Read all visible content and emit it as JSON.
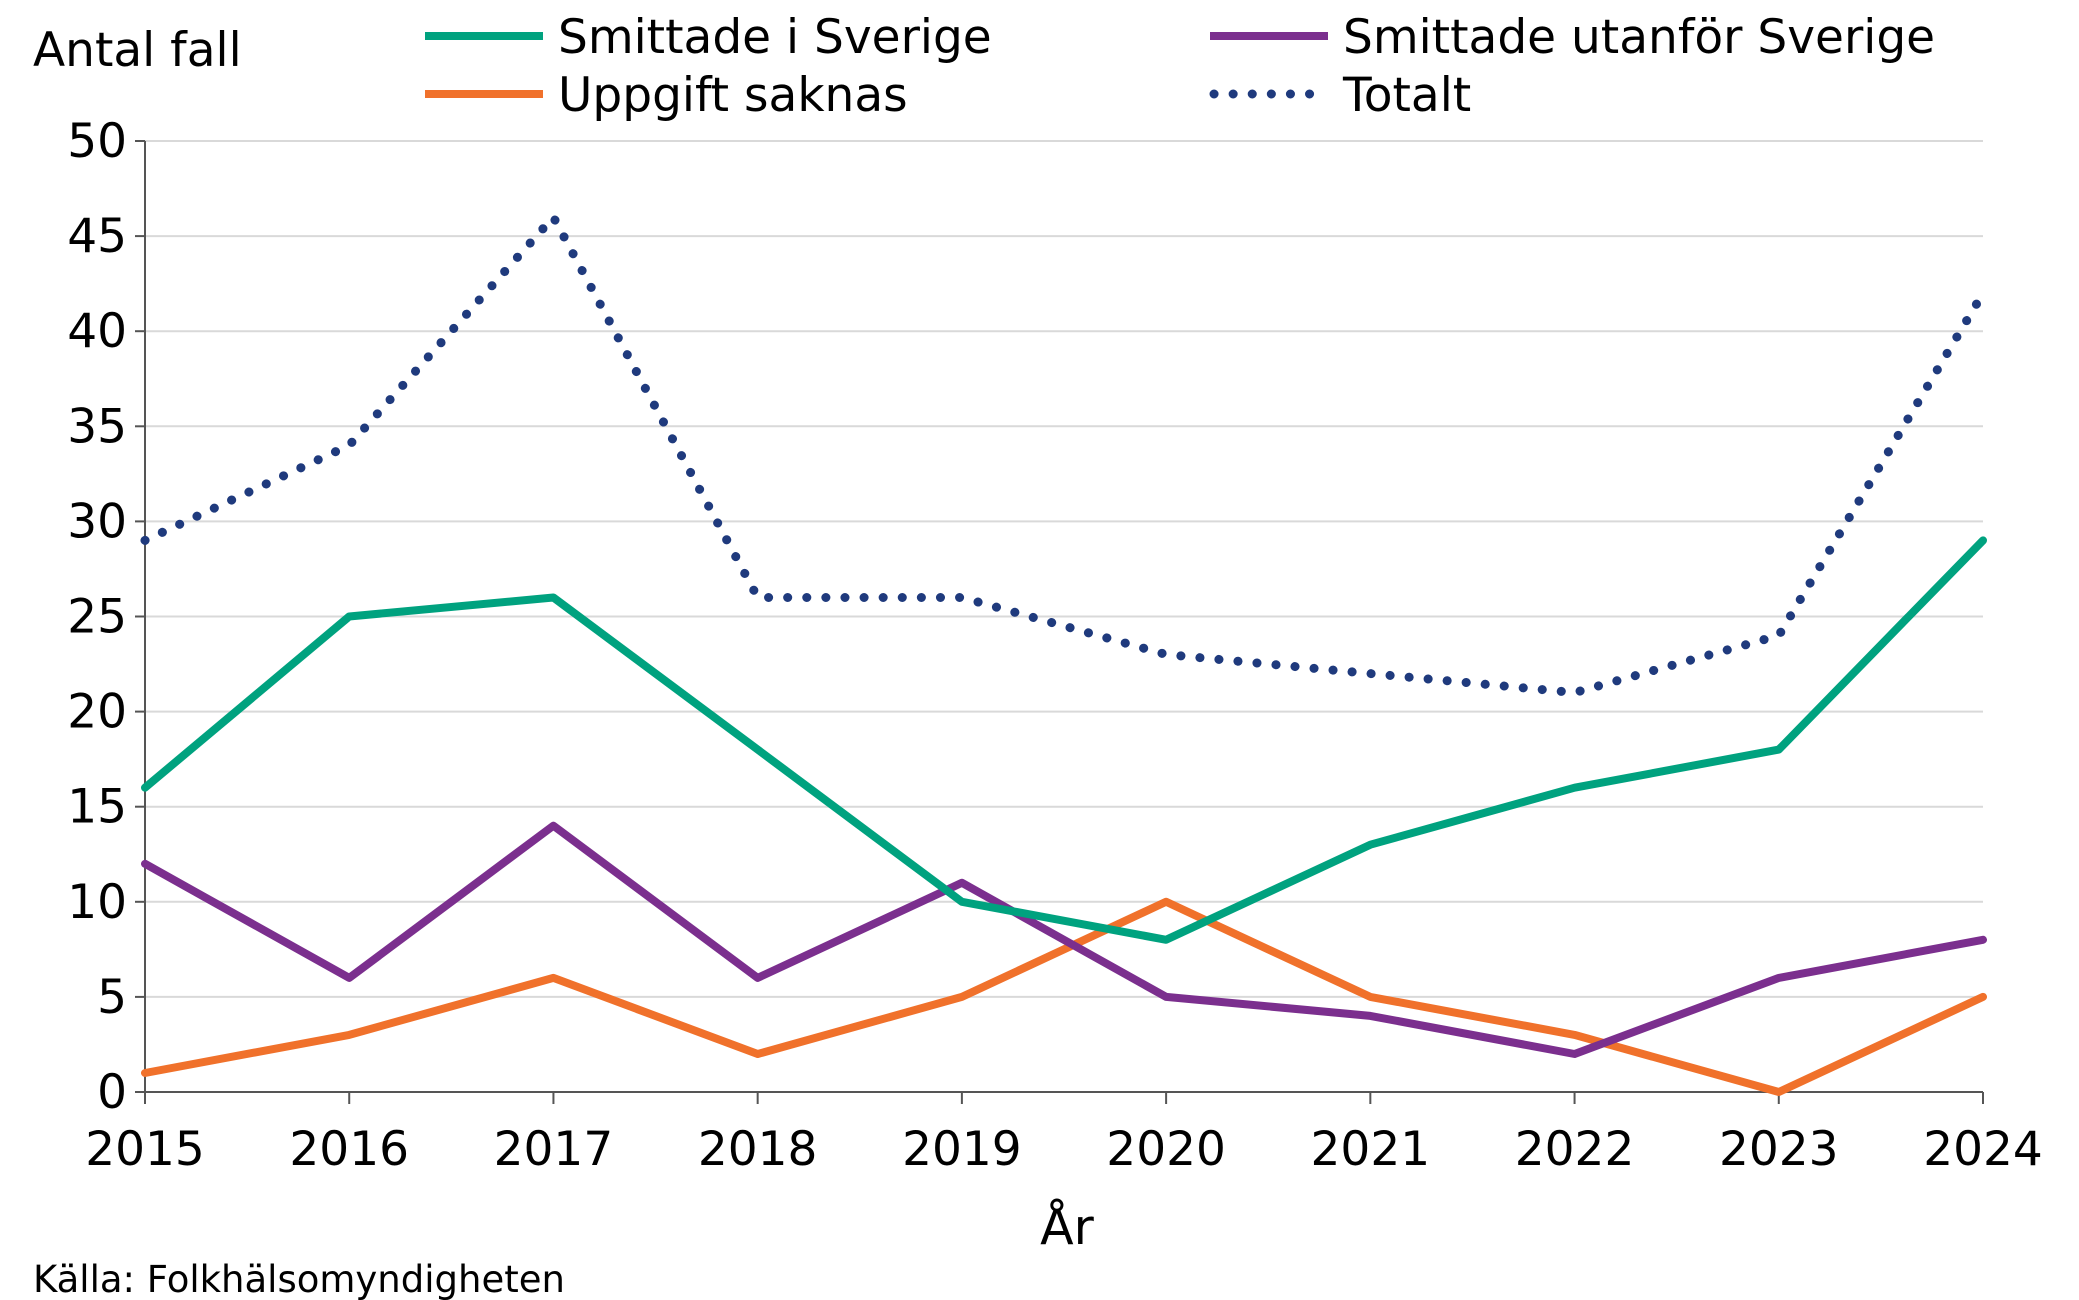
{
  "chart_data": {
    "type": "line",
    "title": "",
    "ylabel": "Antal fall",
    "xlabel": "År",
    "source": "Källa: Folkhälsomyndigheten",
    "ylim": [
      0,
      50
    ],
    "yticks": [
      0,
      5,
      10,
      15,
      20,
      25,
      30,
      35,
      40,
      45,
      50
    ],
    "grid": true,
    "legend_position": "top",
    "categories": [
      "2015",
      "2016",
      "2017",
      "2018",
      "2019",
      "2020",
      "2021",
      "2022",
      "2023",
      "2024"
    ],
    "series": [
      {
        "name": "Smittade i Sverige",
        "color": "#00a27f",
        "style": "solid",
        "values": [
          16,
          25,
          26,
          18,
          10,
          8,
          13,
          16,
          18,
          29
        ]
      },
      {
        "name": "Smittade utanför Sverige",
        "color": "#7b2f8e",
        "style": "solid",
        "values": [
          12,
          6,
          14,
          6,
          11,
          5,
          4,
          2,
          6,
          8
        ]
      },
      {
        "name": "Uppgift saknas",
        "color": "#f0712b",
        "style": "solid",
        "values": [
          1,
          3,
          6,
          2,
          5,
          10,
          5,
          3,
          0,
          5
        ]
      },
      {
        "name": "Totalt",
        "color": "#1f3a7d",
        "style": "dotted",
        "values": [
          29,
          34,
          46,
          26,
          26,
          23,
          22,
          21,
          24,
          42
        ]
      }
    ]
  }
}
